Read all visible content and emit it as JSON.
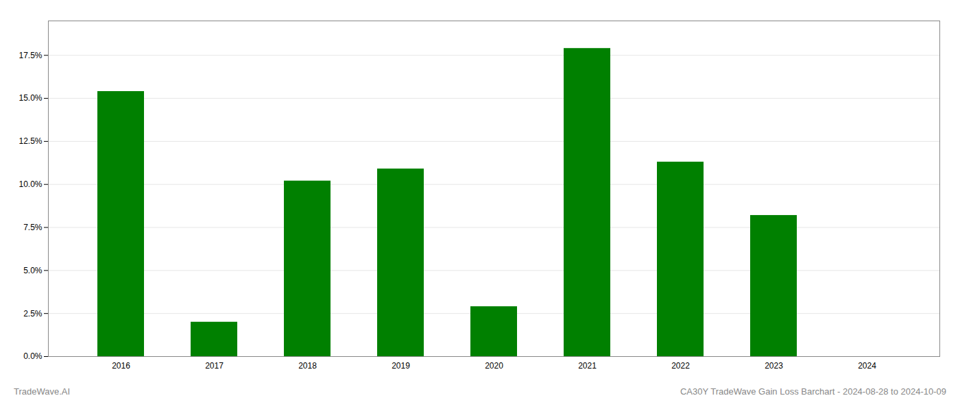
{
  "chart_data": {
    "type": "bar",
    "categories": [
      "2016",
      "2017",
      "2018",
      "2019",
      "2020",
      "2021",
      "2022",
      "2023",
      "2024"
    ],
    "values": [
      0.154,
      0.02,
      0.102,
      0.109,
      0.029,
      0.179,
      0.113,
      0.082,
      0.0
    ],
    "color": "#008000",
    "ylim": [
      0,
      0.195
    ],
    "yticks": [
      {
        "value": 0.0,
        "label": "0.0%"
      },
      {
        "value": 0.025,
        "label": "2.5%"
      },
      {
        "value": 0.05,
        "label": "5.0%"
      },
      {
        "value": 0.075,
        "label": "7.5%"
      },
      {
        "value": 0.1,
        "label": "10.0%"
      },
      {
        "value": 0.125,
        "label": "12.5%"
      },
      {
        "value": 0.15,
        "label": "15.0%"
      },
      {
        "value": 0.175,
        "label": "17.5%"
      }
    ],
    "grid": true,
    "annotations": [
      "TradeWave.AI",
      "CA30Y TradeWave Gain Loss Barchart - 2024-08-28 to 2024-10-09"
    ]
  }
}
